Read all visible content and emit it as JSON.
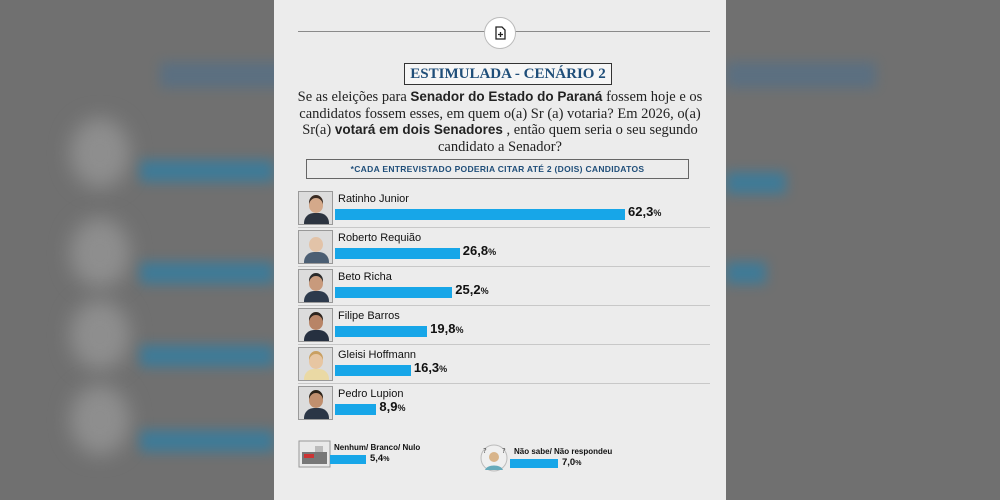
{
  "header": {
    "title": "ESTIMULADA - CENÁRIO 2",
    "question_parts": [
      "Se as eleições para ",
      "Senador do Estado do Paraná",
      " fossem hoje e os candidatos fossem esses, em quem o(a) Sr (a) votaria? Em 2026, o(a) Sr(a) ",
      "votará em dois Senadores",
      " , então quem seria o seu segundo candidato a Senador?"
    ],
    "note": "*CADA ENTREVISTADO PODERIA CITAR ATÉ 2 (DOIS) CANDIDATOS"
  },
  "colors": {
    "bar": "#17a6e8",
    "title": "#1f4e79"
  },
  "chart_data": {
    "type": "bar",
    "orientation": "horizontal",
    "categories": [
      "Ratinho Junior",
      "Roberto Requião",
      "Beto Richa",
      "Filipe Barros",
      "Gleisi Hoffmann",
      "Pedro Lupion"
    ],
    "values": [
      62.3,
      26.8,
      25.2,
      19.8,
      16.3,
      8.9
    ],
    "value_labels": [
      "62,3",
      "26,8",
      "25,2",
      "19,8",
      "16,3",
      "8,9"
    ],
    "unit": "%",
    "extra": [
      {
        "label": "Nenhum/ Branco/ Nulo",
        "value": 5.4,
        "value_label": "5,4"
      },
      {
        "label": "Não sabe/ Não respondeu",
        "value": 7.0,
        "value_label": "7,0"
      }
    ]
  }
}
